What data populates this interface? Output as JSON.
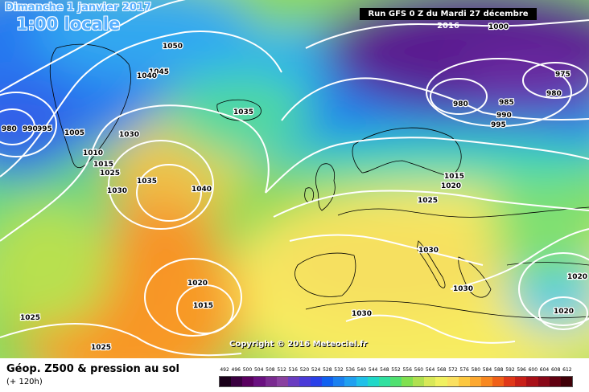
{
  "map": {
    "date_title": "Dimanche 1 janvier 2017",
    "time_label": "1:00 locale",
    "run_info": "Run GFS 0 Z du Mardi 27 décembre 2016",
    "copyright": "Copyright © 2016 Meteociel.fr",
    "isobar_labels": [
      "1050",
      "1045",
      "1040",
      "1040",
      "1035",
      "1035",
      "1030",
      "1030",
      "1030",
      "1030",
      "1030",
      "1025",
      "1025",
      "1025",
      "1025",
      "1020",
      "1020",
      "1020",
      "1020",
      "1015",
      "1015",
      "1015",
      "1010",
      "1005",
      "1000",
      "995",
      "995",
      "990",
      "990",
      "985",
      "980",
      "980",
      "980",
      "975"
    ]
  },
  "legend": {
    "title": "Géop. Z500 & pression au sol",
    "forecast_hour": "(+ 120h)",
    "scale_values": [
      "492",
      "496",
      "500",
      "504",
      "508",
      "512",
      "516",
      "520",
      "524",
      "528",
      "532",
      "536",
      "540",
      "544",
      "548",
      "552",
      "556",
      "560",
      "564",
      "568",
      "572",
      "576",
      "580",
      "584",
      "588",
      "592",
      "596",
      "600",
      "604",
      "608",
      "612"
    ],
    "scale_colors": [
      "#1a001a",
      "#3a0040",
      "#5a0060",
      "#6a1080",
      "#7a2a90",
      "#8a40a0",
      "#6a3cc0",
      "#4a3ad8",
      "#2a40e8",
      "#1060f0",
      "#1a80f0",
      "#20a0f0",
      "#20c0e8",
      "#20d8c8",
      "#30e0a0",
      "#50e070",
      "#80e050",
      "#b0e050",
      "#d8e858",
      "#f0f060",
      "#fae060",
      "#fcc840",
      "#fca830",
      "#f88820",
      "#f06018",
      "#e03818",
      "#c82018",
      "#a81018",
      "#880818",
      "#600010",
      "#400008"
    ]
  }
}
